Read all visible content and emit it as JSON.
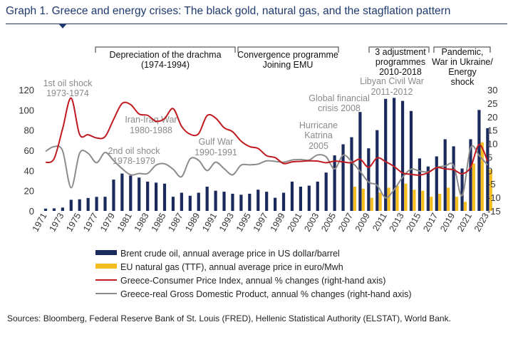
{
  "title": "Graph 1. Greece and energy crises: The black gold, natural gas, and the stagflation pattern",
  "source": "Sources: Bloomberg, Federal Reserve Bank of St. Louis (FRED), Hellenic Statistical Authority (ELSTAT), World Bank.",
  "colors": {
    "brent": "#1b2a5c",
    "gas": "#f5bd1f",
    "cpi": "#c0191f",
    "gdp": "#8c8c8c",
    "title": "#1f3a6e"
  },
  "chart_data": {
    "type": "bar",
    "years": [
      1971,
      1972,
      1973,
      1974,
      1975,
      1976,
      1977,
      1978,
      1979,
      1980,
      1981,
      1982,
      1983,
      1984,
      1985,
      1986,
      1987,
      1988,
      1989,
      1990,
      1991,
      1992,
      1993,
      1994,
      1995,
      1996,
      1997,
      1998,
      1999,
      2000,
      2001,
      2002,
      2003,
      2004,
      2005,
      2006,
      2007,
      2008,
      2009,
      2010,
      2011,
      2012,
      2013,
      2014,
      2015,
      2016,
      2017,
      2018,
      2019,
      2020,
      2021,
      2022,
      2023
    ],
    "x_tick_labels": [
      "1971",
      "1973",
      "1975",
      "1977",
      "1979",
      "1981",
      "1983",
      "1985",
      "1987",
      "1989",
      "1991",
      "1993",
      "1995",
      "1997",
      "1999",
      "2001",
      "2003",
      "2005",
      "2007",
      "2009",
      "2011",
      "2013",
      "2015",
      "2017",
      "2019",
      "2021",
      "2023"
    ],
    "left_axis": {
      "min": 0,
      "max": 120,
      "ticks": [
        0,
        20,
        40,
        60,
        80,
        100,
        120
      ]
    },
    "right_axis": {
      "min": -15,
      "max": 30,
      "ticks": [
        -15,
        -10,
        -5,
        0,
        5,
        10,
        15,
        20,
        25,
        30
      ]
    },
    "series": [
      {
        "name": "Brent crude oil, annual average price in US dollar/barrel",
        "type": "bar",
        "axis": "left",
        "values": [
          2.2,
          2.5,
          3.3,
          11,
          11.5,
          12.8,
          13.9,
          14,
          31,
          37,
          35,
          33,
          29,
          28,
          27,
          14,
          18,
          15,
          18,
          24,
          20,
          19,
          17,
          16,
          17,
          21,
          19,
          13,
          18,
          29,
          24,
          25,
          29,
          38,
          55,
          66,
          73,
          98,
          62,
          80,
          111,
          112,
          109,
          99,
          52,
          44,
          54,
          71,
          64,
          42,
          71,
          100,
          82
        ]
      },
      {
        "name": "EU natural gas (TTF), annual average price in euro/Mwh",
        "type": "bar",
        "axis": "left",
        "start_year": 2007,
        "values": [
          24,
          22,
          13,
          18,
          23,
          25,
          27,
          21,
          20,
          14,
          17,
          23,
          14,
          9,
          47,
          68,
          41
        ]
      },
      {
        "name": "Greece-Consumer Price Index, annual % changes (right-hand axis)",
        "type": "line",
        "axis": "right",
        "values": [
          3,
          4.4,
          15.5,
          26.9,
          13.4,
          13.3,
          12.1,
          12.6,
          19,
          24.9,
          24.5,
          21,
          20.5,
          18.3,
          19.3,
          23,
          16.4,
          13.5,
          13.7,
          20.4,
          19.5,
          15.9,
          14.4,
          10.9,
          8.9,
          8.2,
          5.5,
          4.8,
          2.6,
          3.2,
          3.4,
          3.6,
          3.5,
          2.9,
          3.5,
          3.2,
          2.9,
          4.2,
          1.2,
          4.7,
          3.3,
          1.5,
          -0.9,
          -1.4,
          -1.7,
          -0.8,
          1.1,
          0.6,
          0.3,
          -1.2,
          1.2,
          9.6,
          3.5
        ]
      },
      {
        "name": "Greece-real Gross Domestic Product, annual % changes (right-hand axis)",
        "type": "line",
        "axis": "right",
        "values": [
          7.1,
          8.9,
          7.3,
          -6.4,
          6.4,
          6.4,
          2.9,
          6.7,
          3.7,
          0.7,
          -1.6,
          -1.1,
          -1.1,
          2,
          2.5,
          0.5,
          -2.3,
          4.3,
          3.8,
          0,
          3.1,
          0.7,
          -1.6,
          2,
          2.1,
          2.4,
          3.6,
          3.4,
          3.1,
          3.9,
          4.1,
          3.9,
          5.8,
          5.1,
          0.6,
          5.7,
          3.3,
          -0.3,
          -4.3,
          -5.5,
          -10.1,
          -7.1,
          -2.5,
          0.5,
          -0.2,
          -0.5,
          1.1,
          1.7,
          1.9,
          -9.3,
          8.4,
          5.6,
          2
        ]
      }
    ],
    "annotations": {
      "oil_shock_1": "1st oil shock",
      "oil_shock_1_years": "1973-1974",
      "oil_shock_2": "2nd oil shock",
      "oil_shock_2_years": "1978-1979",
      "iran_iraq": "Iran-Iraq War",
      "iran_iraq_years": "1980-1988",
      "gulf_war": "Gulf War",
      "gulf_war_years": "1990-1991",
      "katrina_1": "Hurricane",
      "katrina_2": "Katrina",
      "katrina_3": "2005",
      "gfc_1": "Global financial",
      "gfc_2": "crisis 2008",
      "libya_1": "Libyan Civil War",
      "libya_2": "2011-2012"
    },
    "period_brackets": [
      {
        "lines": [
          "Depreciation of the drachma",
          "(1974-1994)"
        ]
      },
      {
        "lines": [
          "Convergence programme",
          "Joining EMU"
        ]
      },
      {
        "lines": [
          "3 adjustment",
          "programmes",
          "2010-2018"
        ]
      },
      {
        "lines": [
          "Pandemic,",
          "War in Ukraine/",
          "Energy",
          "shock"
        ]
      }
    ]
  }
}
